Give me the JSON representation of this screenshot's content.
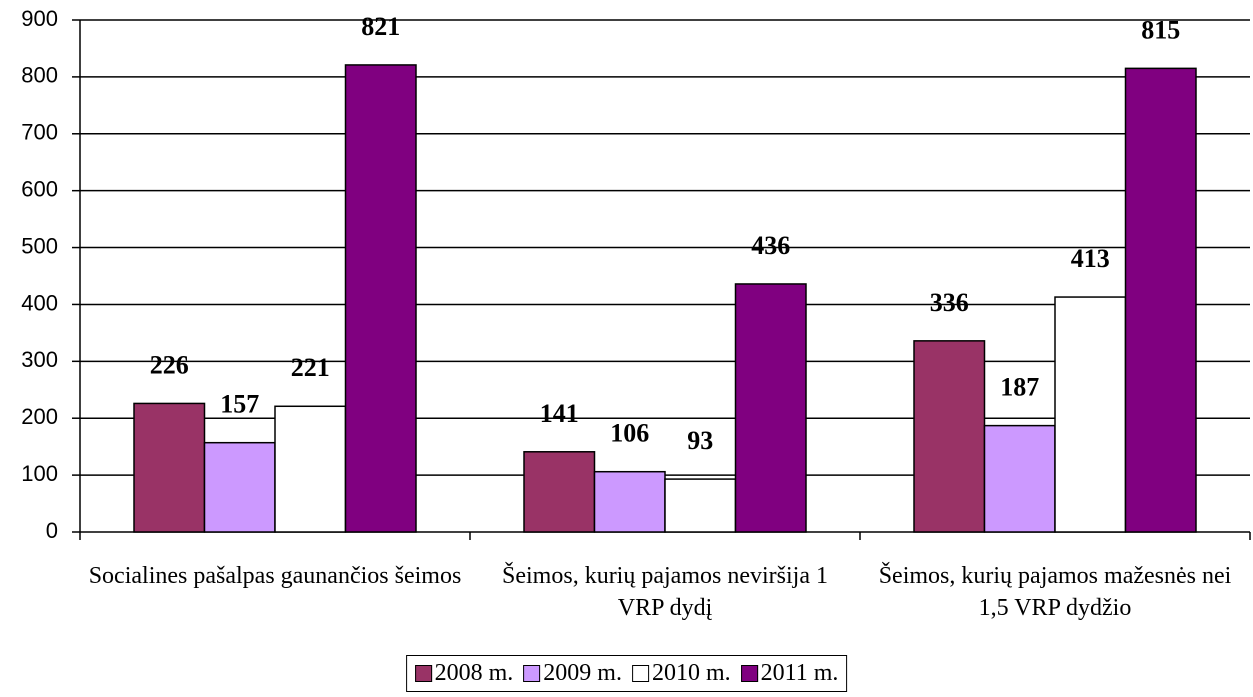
{
  "chart_data": {
    "type": "bar",
    "categories": [
      "Socialines pašalpas gaunančios šeimos",
      "Šeimos, kurių pajamos neviršija 1 VRP dydį",
      "Šeimos, kurių pajamos mažesnės nei 1,5 VRP dydžio"
    ],
    "series": [
      {
        "name": "2008 m.",
        "color": "#993366",
        "values": [
          226,
          141,
          336
        ]
      },
      {
        "name": "2009 m.",
        "color": "#cc99ff",
        "values": [
          157,
          106,
          187
        ]
      },
      {
        "name": "2010 m.",
        "color": "#ffffff",
        "values": [
          221,
          93,
          413
        ]
      },
      {
        "name": "2011 m.",
        "color": "#800080",
        "values": [
          821,
          436,
          815
        ]
      }
    ],
    "ylim": [
      0,
      900
    ],
    "yticks": [
      0,
      100,
      200,
      300,
      400,
      500,
      600,
      700,
      800,
      900
    ],
    "grid": true,
    "legend": "bottom"
  }
}
